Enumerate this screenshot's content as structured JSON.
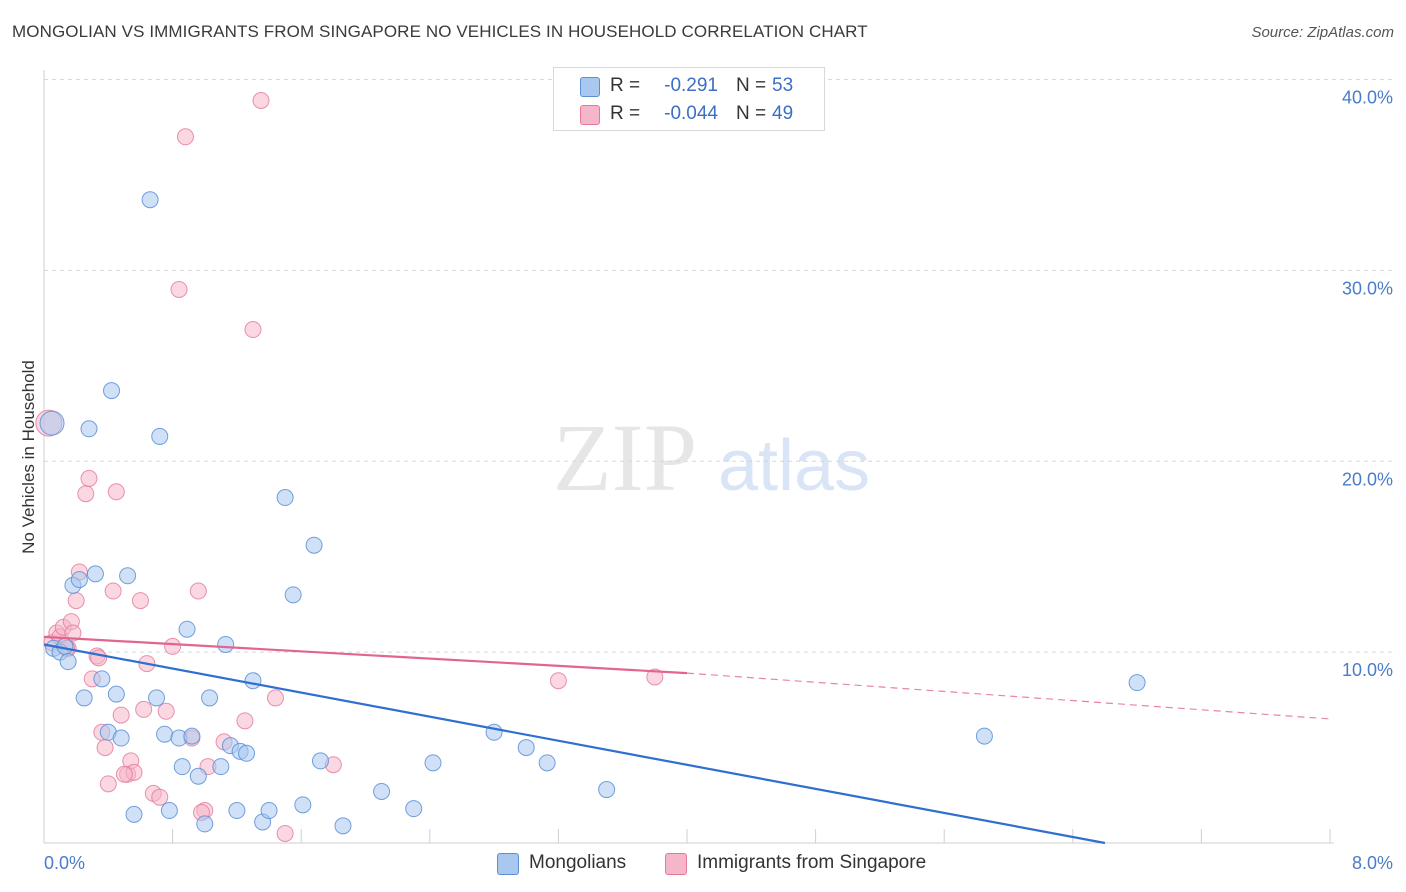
{
  "title": "MONGOLIAN VS IMMIGRANTS FROM SINGAPORE NO VEHICLES IN HOUSEHOLD CORRELATION CHART",
  "source": "Source: ZipAtlas.com",
  "watermark": {
    "zip": "ZIP",
    "atlas": "atlas"
  },
  "legend": {
    "series1": {
      "r_label": "R =",
      "r_value": "-0.291",
      "n_label": "N =",
      "n_value": "53"
    },
    "series2": {
      "r_label": "R =",
      "r_value": "-0.044",
      "n_label": "N =",
      "n_value": "49"
    }
  },
  "bottom_legend": {
    "series1": "Mongolians",
    "series2": "Immigrants from Singapore"
  },
  "colors": {
    "blue_fill": "#a9c8f0",
    "blue_stroke": "#5b8fd6",
    "blue_line": "#2f6fd0",
    "pink_fill": "#f5b6c9",
    "pink_stroke": "#e4789a",
    "pink_line": "#e26590",
    "tick_text": "#4a7cc7",
    "grid": "#d8d8d8"
  },
  "chart_data": {
    "type": "scatter",
    "title": "MONGOLIAN VS IMMIGRANTS FROM SINGAPORE NO VEHICLES IN HOUSEHOLD CORRELATION CHART",
    "xlabel": "",
    "ylabel": "No Vehicles in Household",
    "xlim": [
      0,
      8.0
    ],
    "ylim": [
      0,
      40.0
    ],
    "x_tick_labels": [
      "0.0%",
      "8.0%"
    ],
    "y_ticks": [
      10,
      20,
      30,
      40
    ],
    "y_tick_labels": [
      "10.0%",
      "20.0%",
      "30.0%",
      "40.0%"
    ],
    "grid": true,
    "series": [
      {
        "name": "Mongolians",
        "color": "#a9c8f0",
        "r": -0.291,
        "n": 53,
        "trend": {
          "x0": 0.0,
          "y0": 10.4,
          "x1": 6.6,
          "y1": 0.0
        },
        "points": [
          [
            0.05,
            22.0
          ],
          [
            0.06,
            10.2
          ],
          [
            0.1,
            10.0
          ],
          [
            0.13,
            10.3
          ],
          [
            0.15,
            9.5
          ],
          [
            0.18,
            13.5
          ],
          [
            0.22,
            13.8
          ],
          [
            0.25,
            7.6
          ],
          [
            0.28,
            21.7
          ],
          [
            0.32,
            14.1
          ],
          [
            0.36,
            8.6
          ],
          [
            0.4,
            5.8
          ],
          [
            0.42,
            23.7
          ],
          [
            0.45,
            7.8
          ],
          [
            0.48,
            5.5
          ],
          [
            0.52,
            14.0
          ],
          [
            0.56,
            1.5
          ],
          [
            0.66,
            33.7
          ],
          [
            0.7,
            7.6
          ],
          [
            0.72,
            21.3
          ],
          [
            0.75,
            5.7
          ],
          [
            0.78,
            1.7
          ],
          [
            0.84,
            5.5
          ],
          [
            0.86,
            4.0
          ],
          [
            0.89,
            11.2
          ],
          [
            0.92,
            5.6
          ],
          [
            0.96,
            3.5
          ],
          [
            1.0,
            1.0
          ],
          [
            1.03,
            7.6
          ],
          [
            1.1,
            4.0
          ],
          [
            1.13,
            10.4
          ],
          [
            1.16,
            5.1
          ],
          [
            1.2,
            1.7
          ],
          [
            1.22,
            4.8
          ],
          [
            1.26,
            4.7
          ],
          [
            1.3,
            8.5
          ],
          [
            1.36,
            1.1
          ],
          [
            1.4,
            1.7
          ],
          [
            1.5,
            18.1
          ],
          [
            1.55,
            13.0
          ],
          [
            1.61,
            2.0
          ],
          [
            1.68,
            15.6
          ],
          [
            1.72,
            4.3
          ],
          [
            1.86,
            0.9
          ],
          [
            2.1,
            2.7
          ],
          [
            2.3,
            1.8
          ],
          [
            2.42,
            4.2
          ],
          [
            2.8,
            5.8
          ],
          [
            3.0,
            5.0
          ],
          [
            3.13,
            4.2
          ],
          [
            3.5,
            2.8
          ],
          [
            5.85,
            5.6
          ],
          [
            6.8,
            8.4
          ]
        ]
      },
      {
        "name": "Immigrants from Singapore",
        "color": "#f5b6c9",
        "r": -0.044,
        "n": 49,
        "trend": {
          "x0": 0.0,
          "y0": 10.8,
          "x1": 4.0,
          "y1": 8.9,
          "dash_x1": 8.0,
          "dash_y1": 6.5
        },
        "points": [
          [
            0.03,
            22.0
          ],
          [
            0.05,
            10.5
          ],
          [
            0.08,
            11.0
          ],
          [
            0.1,
            10.8
          ],
          [
            0.12,
            11.3
          ],
          [
            0.15,
            10.2
          ],
          [
            0.17,
            11.6
          ],
          [
            0.18,
            11.0
          ],
          [
            0.2,
            12.7
          ],
          [
            0.22,
            14.2
          ],
          [
            0.26,
            18.3
          ],
          [
            0.28,
            19.1
          ],
          [
            0.3,
            8.6
          ],
          [
            0.33,
            9.8
          ],
          [
            0.36,
            5.8
          ],
          [
            0.38,
            5.0
          ],
          [
            0.4,
            3.1
          ],
          [
            0.43,
            13.2
          ],
          [
            0.45,
            18.4
          ],
          [
            0.48,
            6.7
          ],
          [
            0.52,
            3.6
          ],
          [
            0.54,
            4.3
          ],
          [
            0.56,
            3.7
          ],
          [
            0.6,
            12.7
          ],
          [
            0.62,
            7.0
          ],
          [
            0.64,
            9.4
          ],
          [
            0.68,
            2.6
          ],
          [
            0.72,
            2.4
          ],
          [
            0.76,
            6.9
          ],
          [
            0.8,
            10.3
          ],
          [
            0.84,
            29.0
          ],
          [
            0.88,
            37.0
          ],
          [
            0.92,
            5.5
          ],
          [
            0.96,
            13.2
          ],
          [
            1.0,
            1.7
          ],
          [
            1.02,
            4.0
          ],
          [
            1.12,
            5.3
          ],
          [
            1.25,
            6.4
          ],
          [
            1.3,
            26.9
          ],
          [
            1.35,
            38.9
          ],
          [
            1.44,
            7.6
          ],
          [
            1.5,
            0.5
          ],
          [
            1.8,
            4.1
          ],
          [
            3.2,
            8.5
          ],
          [
            3.8,
            8.7
          ],
          [
            0.14,
            10.2
          ],
          [
            0.5,
            3.6
          ],
          [
            0.98,
            1.6
          ],
          [
            0.34,
            9.7
          ]
        ]
      }
    ]
  }
}
